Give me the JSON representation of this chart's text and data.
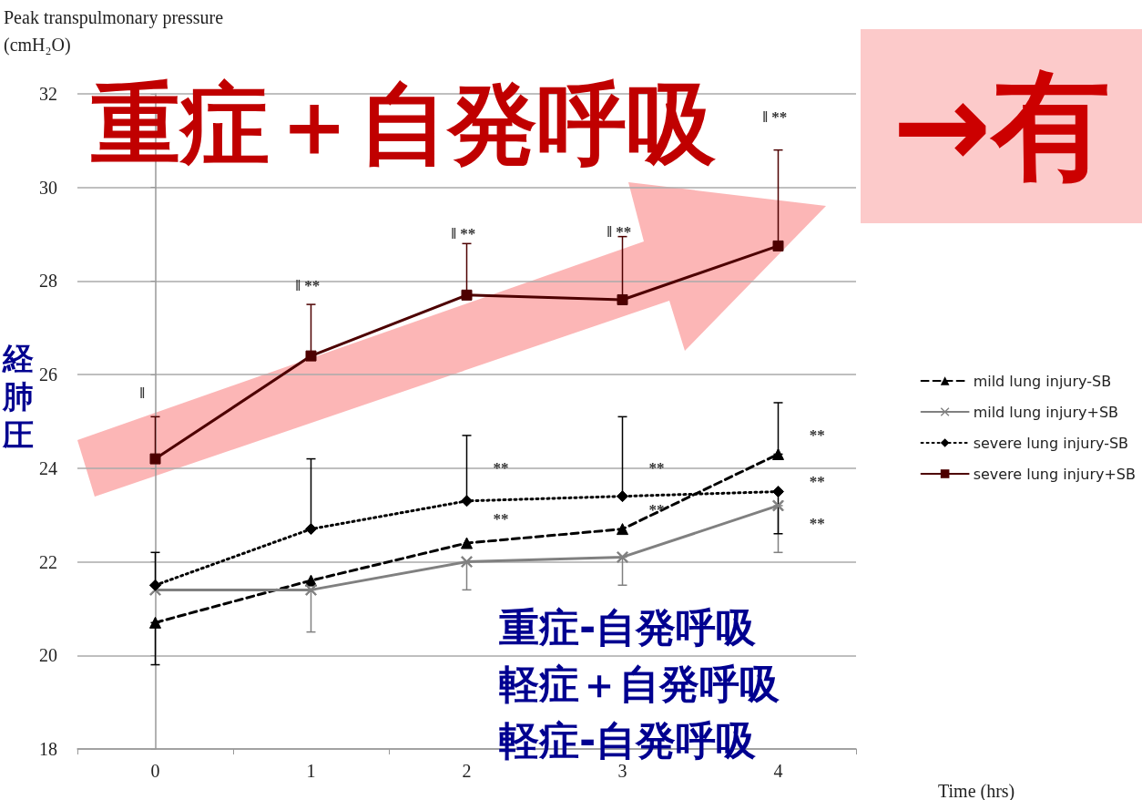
{
  "chart_data": {
    "type": "line",
    "ylabel": "Peak transpulmonary pressure (cmH₂O)",
    "xlabel": "Time (hrs)",
    "x": [
      0,
      1,
      2,
      3,
      4
    ],
    "xlim": [
      -0.5,
      4.5
    ],
    "xticks": [
      {
        "value": -0.5,
        "label": null
      },
      0,
      {
        "value": 0.5,
        "label": null
      },
      1,
      {
        "value": 1.5,
        "label": null
      },
      2,
      {
        "value": 2.5,
        "label": null
      },
      3,
      {
        "value": 3.5,
        "label": null
      },
      4,
      {
        "value": 4.5,
        "label": null
      }
    ],
    "ylim": [
      18,
      32
    ],
    "yticks": [
      18,
      20,
      22,
      24,
      26,
      28,
      30,
      32
    ],
    "grid": "y",
    "legend": "right",
    "series": [
      {
        "name": "mild lung injury-SB",
        "color": "#000000",
        "marker": "triangle",
        "line_style": "dashed",
        "values": [
          20.7,
          21.6,
          22.4,
          22.7,
          24.3
        ],
        "errors": [
          [
            19.8,
            20.7
          ],
          null,
          null,
          null,
          [
            24.3,
            25.4
          ]
        ]
      },
      {
        "name": "mild lung injury+SB",
        "color": "#808080",
        "marker": "cross",
        "line_style": "solid",
        "values": [
          21.4,
          21.4,
          22.0,
          22.1,
          23.2
        ],
        "errors": [
          null,
          [
            20.5,
            21.4
          ],
          [
            21.4,
            22.0
          ],
          [
            21.5,
            22.1
          ],
          [
            22.2,
            23.2
          ]
        ]
      },
      {
        "name": "severe lung injury-SB",
        "color": "#000000",
        "marker": "diamond",
        "line_style": "dotted",
        "values": [
          21.5,
          22.7,
          23.3,
          23.4,
          23.5
        ],
        "errors": [
          [
            21.5,
            22.2
          ],
          [
            22.7,
            24.2
          ],
          [
            23.3,
            24.7
          ],
          [
            23.4,
            25.1
          ],
          [
            22.6,
            23.5
          ]
        ]
      },
      {
        "name": "severe lung injury+SB",
        "color": "#4d0000",
        "marker": "square",
        "line_style": "solid",
        "values": [
          24.2,
          26.4,
          27.7,
          27.6,
          28.75
        ],
        "errors": [
          [
            24.2,
            25.1
          ],
          [
            26.4,
            27.5
          ],
          [
            27.7,
            28.8
          ],
          [
            27.6,
            28.95
          ],
          [
            28.75,
            30.8
          ]
        ]
      }
    ],
    "annotations": [
      "重症＋自発呼吸",
      "→有",
      "経肺圧",
      "重症-自発呼吸",
      "軽症＋自発呼吸",
      "軽症-自発呼吸",
      "ǁ",
      "ǁ **",
      "ǁ **",
      "ǁ **",
      "ǁ **",
      "**",
      "**",
      "**",
      "**",
      "**",
      "**",
      "**"
    ]
  }
}
